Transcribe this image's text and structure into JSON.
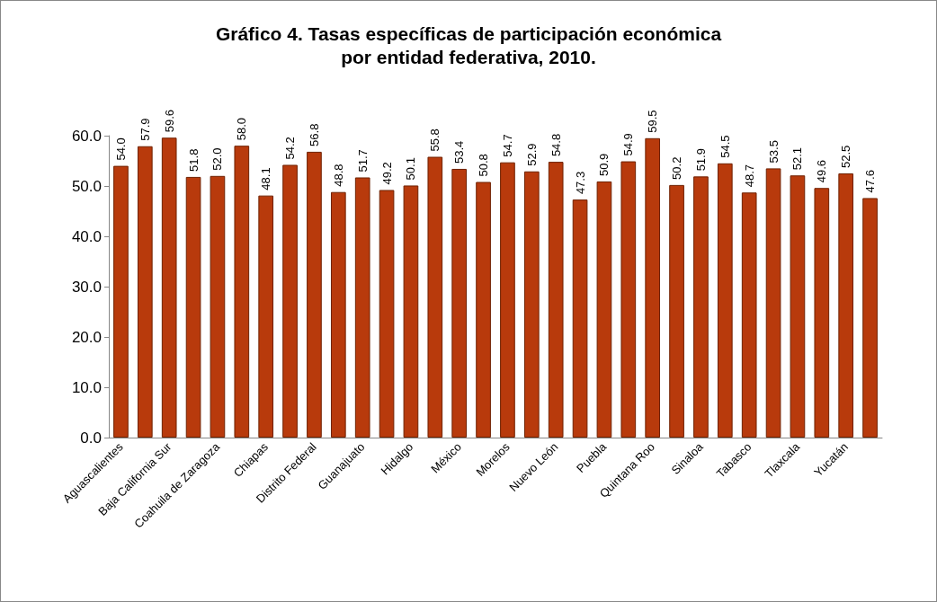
{
  "chart_data": {
    "type": "bar",
    "title": "Gráfico 4. Tasas específicas de participación económica\npor entidad federativa, 2010.",
    "categories": [
      "Aguascalientes",
      null,
      "Baja California Sur",
      null,
      "Coahuila de Zaragoza",
      null,
      "Chiapas",
      null,
      "Distrito Federal",
      null,
      "Guanajuato",
      null,
      "Hidalgo",
      null,
      "México",
      null,
      "Morelos",
      null,
      "Nuevo León",
      null,
      "Puebla",
      null,
      "Quintana Roo",
      null,
      "Sinaloa",
      null,
      "Tabasco",
      null,
      "Tlaxcala",
      null,
      "Yucatán",
      null
    ],
    "values": [
      54.0,
      57.9,
      59.6,
      51.8,
      52.0,
      58.0,
      48.1,
      54.2,
      56.8,
      48.8,
      51.7,
      49.2,
      50.1,
      55.8,
      53.4,
      50.8,
      54.7,
      52.9,
      54.8,
      47.3,
      50.9,
      54.9,
      59.5,
      50.2,
      51.9,
      54.5,
      48.7,
      53.5,
      52.1,
      49.6,
      52.5,
      47.6
    ],
    "value_labels": [
      "54.0",
      "57.9",
      "59.6",
      "51.8",
      "52.0",
      "58.0",
      "48.1",
      "54.2",
      "56.8",
      "48.8",
      "51.7",
      "49.2",
      "50.1",
      "55.8",
      "53.4",
      "50.8",
      "54.7",
      "52.9",
      "54.8",
      "47.3",
      "50.9",
      "54.9",
      "59.5",
      "50.2",
      "51.9",
      "54.5",
      "48.7",
      "53.5",
      "52.1",
      "49.6",
      "52.5",
      "47.6"
    ],
    "color": "#b83a0c",
    "ylim": [
      0,
      60
    ],
    "yticks": [
      {
        "value": 0,
        "label": "0.0"
      },
      {
        "value": 10,
        "label": "10.0"
      },
      {
        "value": 20,
        "label": "20.0"
      },
      {
        "value": 30,
        "label": "30.0"
      },
      {
        "value": 40,
        "label": "40.0"
      },
      {
        "value": 50,
        "label": "50.0"
      },
      {
        "value": 60,
        "label": "60.0"
      }
    ],
    "grid": false
  }
}
